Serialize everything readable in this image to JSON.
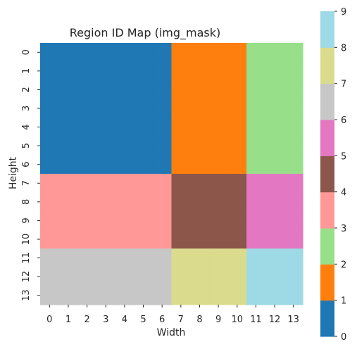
{
  "chart_data": {
    "type": "heatmap",
    "title": "Region ID Map (img_mask)",
    "xlabel": "Width",
    "ylabel": "Height",
    "x_ticks": [
      "0",
      "1",
      "2",
      "3",
      "4",
      "5",
      "6",
      "7",
      "8",
      "9",
      "10",
      "11",
      "12",
      "13"
    ],
    "y_ticks": [
      "0",
      "1",
      "2",
      "3",
      "4",
      "5",
      "6",
      "7",
      "8",
      "9",
      "10",
      "11",
      "12",
      "13"
    ],
    "values": [
      [
        0,
        0,
        0,
        0,
        0,
        0,
        0,
        1,
        1,
        1,
        1,
        2,
        2,
        2
      ],
      [
        0,
        0,
        0,
        0,
        0,
        0,
        0,
        1,
        1,
        1,
        1,
        2,
        2,
        2
      ],
      [
        0,
        0,
        0,
        0,
        0,
        0,
        0,
        1,
        1,
        1,
        1,
        2,
        2,
        2
      ],
      [
        0,
        0,
        0,
        0,
        0,
        0,
        0,
        1,
        1,
        1,
        1,
        2,
        2,
        2
      ],
      [
        0,
        0,
        0,
        0,
        0,
        0,
        0,
        1,
        1,
        1,
        1,
        2,
        2,
        2
      ],
      [
        0,
        0,
        0,
        0,
        0,
        0,
        0,
        1,
        1,
        1,
        1,
        2,
        2,
        2
      ],
      [
        0,
        0,
        0,
        0,
        0,
        0,
        0,
        1,
        1,
        1,
        1,
        2,
        2,
        2
      ],
      [
        4,
        4,
        4,
        4,
        4,
        4,
        4,
        5,
        5,
        5,
        5,
        6,
        6,
        6
      ],
      [
        4,
        4,
        4,
        4,
        4,
        4,
        4,
        5,
        5,
        5,
        5,
        6,
        6,
        6
      ],
      [
        4,
        4,
        4,
        4,
        4,
        4,
        4,
        5,
        5,
        5,
        5,
        6,
        6,
        6
      ],
      [
        4,
        4,
        4,
        4,
        4,
        4,
        4,
        5,
        5,
        5,
        5,
        6,
        6,
        6
      ],
      [
        7,
        7,
        7,
        7,
        7,
        7,
        7,
        8,
        8,
        8,
        8,
        9,
        9,
        9
      ],
      [
        7,
        7,
        7,
        7,
        7,
        7,
        7,
        8,
        8,
        8,
        8,
        9,
        9,
        9
      ],
      [
        7,
        7,
        7,
        7,
        7,
        7,
        7,
        8,
        8,
        8,
        8,
        9,
        9,
        9
      ]
    ],
    "colorbar": {
      "range": [
        0,
        9
      ],
      "ticks": [
        "0",
        "1",
        "2",
        "3",
        "4",
        "5",
        "6",
        "7",
        "8",
        "9"
      ],
      "colors": [
        "#1f77b4",
        "#ff7f0e",
        "#98df8a",
        "#ff9896",
        "#8c564b",
        "#e377c2",
        "#c7c7c7",
        "#dbdb8d",
        "#9edae5"
      ]
    },
    "value_colors": {
      "0": "#1f77b4",
      "1": "#ff7f0e",
      "2": "#98df8a",
      "4": "#ff9896",
      "5": "#8c564b",
      "6": "#e377c2",
      "7": "#c7c7c7",
      "8": "#dbdb8d",
      "9": "#9edae5"
    },
    "grid": false
  }
}
